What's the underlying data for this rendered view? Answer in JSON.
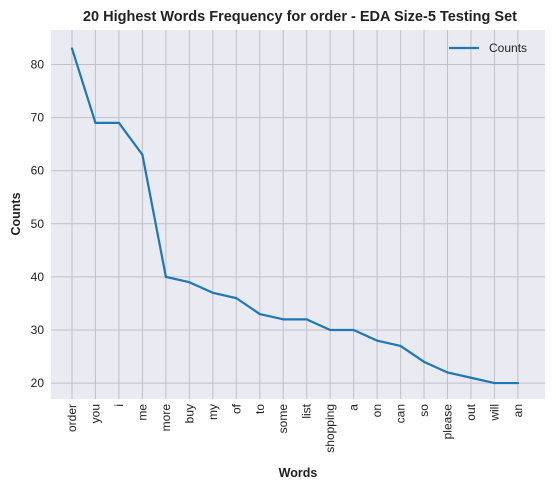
{
  "chart_data": {
    "type": "line",
    "title": "20 Highest Words Frequency for order - EDA Size-5 Testing Set",
    "xlabel": "Words",
    "ylabel": "Counts",
    "categories": [
      "order",
      "you",
      "i",
      "me",
      "more",
      "buy",
      "my",
      "of",
      "to",
      "some",
      "list",
      "shopping",
      "a",
      "on",
      "can",
      "so",
      "please",
      "out",
      "will",
      "an"
    ],
    "series": [
      {
        "name": "Counts",
        "values": [
          83,
          69,
          69,
          63,
          40,
          39,
          37,
          36,
          33,
          32,
          32,
          30,
          30,
          28,
          27,
          24,
          22,
          21,
          20,
          20
        ]
      }
    ],
    "yticks": [
      20,
      30,
      40,
      50,
      60,
      70,
      80
    ],
    "ylim": [
      17,
      86.5
    ],
    "grid": true,
    "legend_position": "top-right",
    "colors": {
      "line": "#1f77b4",
      "plot_background": "#eaeaf2",
      "grid": "#c0c0c8"
    }
  }
}
